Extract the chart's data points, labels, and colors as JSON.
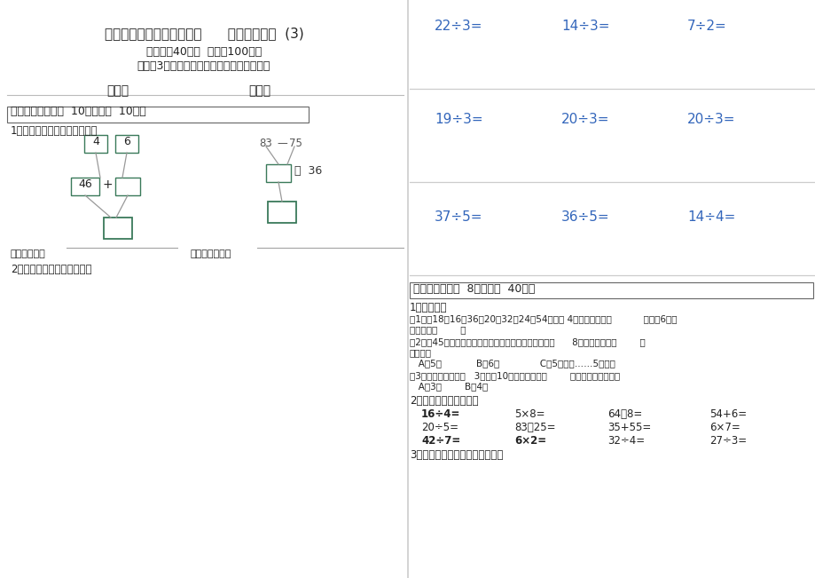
{
  "title": "人教版小学二年级数学下册      期末考试试卷  (3)",
  "subtitle1": "（时间：40分钟  满分：100分）",
  "subtitle2": "卷面（3分），我能做到书写端正，卷面整洁",
  "class_label": "班级：",
  "name_label": "姓名：",
  "section1_header": "一、计算题（每题  10分，共计  10分）",
  "q1_label": "1、填一填，并列出综合算式。",
  "q2_label": "2、有余数除法竖式计算练习",
  "synthesis_label1": "列综合算式：",
  "synthesis_label2": "列综合算式是：",
  "right_divs": [
    "22÷3=",
    "14÷3=",
    "7÷2=",
    "19÷3=",
    "20÷3=",
    "20÷3=",
    "37÷5=",
    "36÷5=",
    "14÷4="
  ],
  "section2_header": "二、填空（每题  8分，共计  40分）",
  "s2_q1_title": "1、选择题。",
  "s2_q1_1a": "（1）在18、16、36、20、32、24、54中，被 4除有余数的是（           ）；被6除有",
  "s2_q1_1b": "余数的是（        ）",
  "s2_q1_2a": "（2）有45条金鱼，要放到鱼缸里，每个鱼缸最多只能放      8条，至少需要（        ）",
  "s2_q1_2b": "个鱼缸。",
  "s2_q1_2c": "   A、5个            B、6个              C、5（个）……5（条）",
  "s2_q1_3a": "（3）每套学生装用布   3米，有10米布，可以做（        ）套这样的学生装。",
  "s2_q1_3b": "   A、3套        B、4套",
  "s2_q2_title": "2、看谁算得又快又准。",
  "calc_row1": [
    "16÷4=",
    "5×8=",
    "64－8=",
    "54+6="
  ],
  "calc_row2": [
    "20÷5=",
    "83－25=",
    "35+55=",
    "6×7="
  ],
  "calc_row3": [
    "42÷7=",
    "6×2=",
    "32÷4=",
    "27÷3="
  ],
  "calc_bold": [
    [
      true,
      false,
      false,
      false
    ],
    [
      false,
      false,
      false,
      false
    ],
    [
      true,
      true,
      false,
      false
    ]
  ],
  "s2_q3": "3、请根据钟面，写出相应的时间",
  "bg_color": "#ffffff",
  "dark_color": "#222222",
  "blue_color": "#3366bb",
  "green_color": "#3a7a5a",
  "gray_color": "#aaaaaa",
  "divider_color": "#cccccc"
}
